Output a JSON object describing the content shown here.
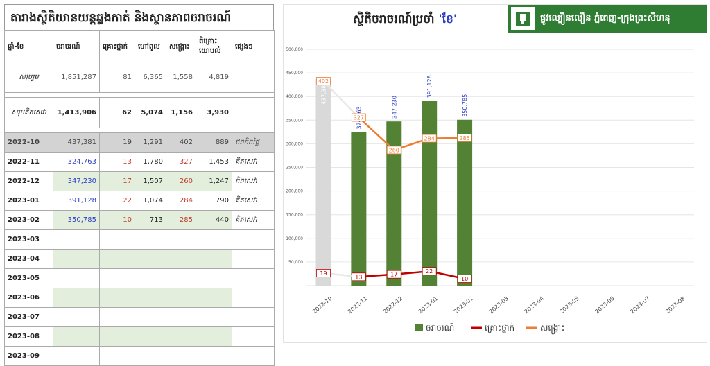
{
  "table": {
    "title": "តារាងស្ថិតិយានយន្តឆ្លងកាត់ និងស្ថានភាពចរាចរណ៍",
    "headers": [
      "ឆ្នាំ-ខែ",
      "ចរាចរណ៍",
      "គ្រោះថ្នាក់",
      "ហៅពូល",
      "សង្គ្រោះ",
      "តិគ្រោះ យោបល់",
      "ផ្សេងៗ"
    ],
    "sum": {
      "label": "សរុបរួម",
      "values": [
        "1,851,287",
        "81",
        "6,365",
        "1,558",
        "4,819"
      ]
    },
    "sum_paid": {
      "label": "សរុបគិតសេវា",
      "values": [
        "1,413,906",
        "62",
        "5,074",
        "1,156",
        "3,930"
      ]
    },
    "rows": [
      {
        "month": "2022-10",
        "values": [
          "437,381",
          "19",
          "1,291",
          "402",
          "889"
        ],
        "note": "ឥតគិតថ្លៃ"
      },
      {
        "month": "2022-11",
        "values": [
          "324,763",
          "13",
          "1,780",
          "327",
          "1,453"
        ],
        "note": "គិតសេវា"
      },
      {
        "month": "2022-12",
        "values": [
          "347,230",
          "17",
          "1,507",
          "260",
          "1,247"
        ],
        "note": "គិតសេវា"
      },
      {
        "month": "2023-01",
        "values": [
          "391,128",
          "22",
          "1,074",
          "284",
          "790"
        ],
        "note": "គិតសេវា"
      },
      {
        "month": "2023-02",
        "values": [
          "350,785",
          "10",
          "713",
          "285",
          "440"
        ],
        "note": "គិតសេវា"
      },
      {
        "month": "2023-03",
        "values": [
          "",
          "",
          "",
          "",
          ""
        ],
        "note": ""
      },
      {
        "month": "2023-04",
        "values": [
          "",
          "",
          "",
          "",
          ""
        ],
        "note": ""
      },
      {
        "month": "2023-05",
        "values": [
          "",
          "",
          "",
          "",
          ""
        ],
        "note": ""
      },
      {
        "month": "2023-06",
        "values": [
          "",
          "",
          "",
          "",
          ""
        ],
        "note": ""
      },
      {
        "month": "2023-07",
        "values": [
          "",
          "",
          "",
          "",
          ""
        ],
        "note": ""
      },
      {
        "month": "2023-08",
        "values": [
          "",
          "",
          "",
          "",
          ""
        ],
        "note": ""
      },
      {
        "month": "2023-09",
        "values": [
          "",
          "",
          "",
          "",
          ""
        ],
        "note": ""
      }
    ]
  },
  "colors": {
    "bar_green": "#548235",
    "bar_gray": "#d9d9d9",
    "accident": "#c00000",
    "rescue": "#ed7d31",
    "blue_text": "#2b3cc4"
  },
  "logo": {
    "icon": "expressway-emblem-icon",
    "text": "ផ្លូវល្បឿនលឿន ភ្នំពេញ-ក្រុងព្រះសីហនុ"
  },
  "chart_data": {
    "type": "bar",
    "title_prefix": "ស្ថិតិចរាចរណ៍ប្រចាំ ",
    "title_highlight": "'ខែ'",
    "categories": [
      "2022-10",
      "2022-11",
      "2022-12",
      "2023-01",
      "2023-02",
      "2023-03",
      "2023-04",
      "2023-05",
      "2023-06",
      "2023-07",
      "2023-08"
    ],
    "series": [
      {
        "name": "ចរាចរណ៍",
        "kind": "bar",
        "values": [
          437381,
          324763,
          347230,
          391128,
          350785,
          null,
          null,
          null,
          null,
          null,
          null
        ],
        "labels": [
          "437,381",
          "324,763",
          "347,230",
          "391,128",
          "350,785"
        ]
      },
      {
        "name": "គ្រោះថ្នាក់",
        "kind": "line",
        "values": [
          19,
          13,
          17,
          22,
          10,
          null,
          null,
          null,
          null,
          null,
          null
        ]
      },
      {
        "name": "សង្គ្រោះ",
        "kind": "line",
        "values": [
          402,
          327,
          260,
          284,
          285,
          null,
          null,
          null,
          null,
          null,
          null
        ]
      }
    ],
    "ylim": [
      0,
      500000
    ],
    "yticks": [
      0,
      50000,
      100000,
      150000,
      200000,
      250000,
      300000,
      350000,
      400000,
      450000,
      500000
    ],
    "ytick_labels": [
      "-",
      "50,000",
      "100,000",
      "150,000",
      "200,000",
      "250,000",
      "300,000",
      "350,000",
      "400,000",
      "450,000",
      "500,000"
    ],
    "grid": true,
    "legend": "bottom"
  }
}
